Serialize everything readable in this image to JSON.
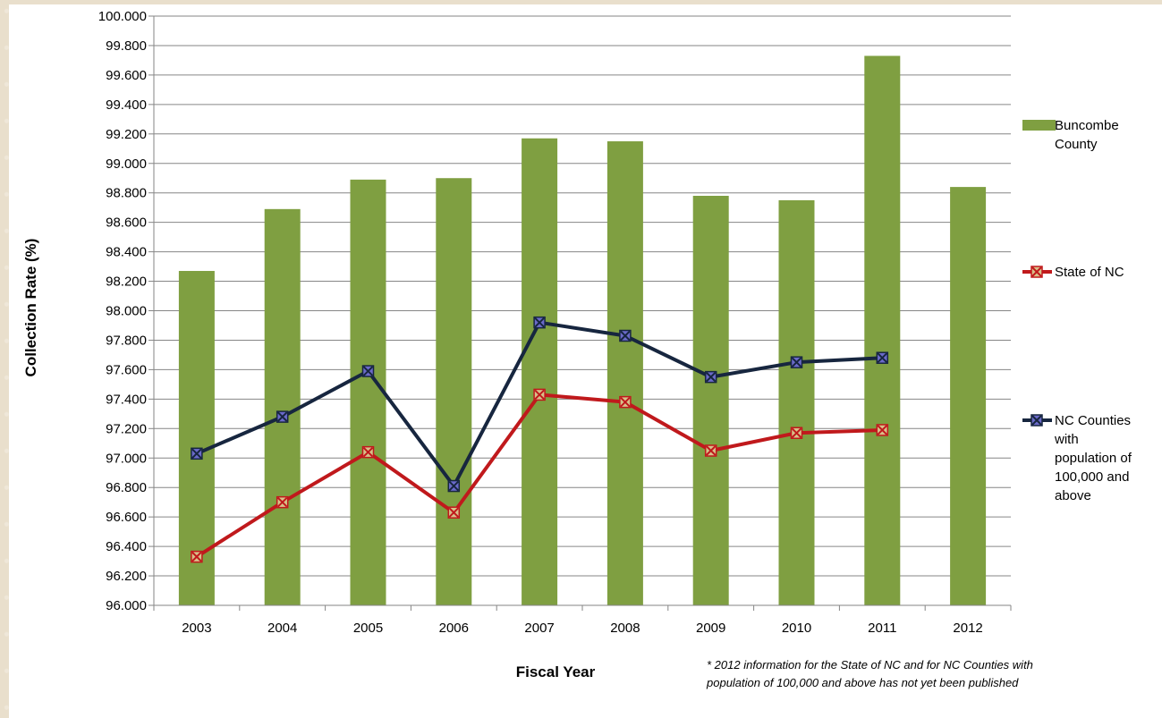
{
  "chart_data": {
    "type": "bar",
    "title": "",
    "xlabel": "Fiscal Year",
    "ylabel": "Collection Rate (%)",
    "ylim": [
      96.0,
      100.0
    ],
    "ytick_step": 0.2,
    "ytick_labels": [
      "96.000",
      "96.200",
      "96.400",
      "96.600",
      "96.800",
      "97.000",
      "97.200",
      "97.400",
      "97.600",
      "97.800",
      "98.000",
      "98.200",
      "98.400",
      "98.600",
      "98.800",
      "99.000",
      "99.200",
      "99.400",
      "99.600",
      "99.800",
      "100.000"
    ],
    "categories": [
      "2003",
      "2004",
      "2005",
      "2006",
      "2007",
      "2008",
      "2009",
      "2010",
      "2011",
      "2012"
    ],
    "grid": true,
    "legend_position": "right",
    "series": [
      {
        "name": "Buncombe County",
        "kind": "bar",
        "color": "#7f9f41",
        "values": [
          98.27,
          98.69,
          98.89,
          98.9,
          99.17,
          99.15,
          98.78,
          98.75,
          99.73,
          98.84
        ]
      },
      {
        "name": "State of NC",
        "kind": "line",
        "color": "#c0191c",
        "marker": "x-square",
        "marker_fill": "#d8c089",
        "values": [
          96.33,
          96.7,
          97.04,
          96.63,
          97.43,
          97.38,
          97.05,
          97.17,
          97.19,
          null
        ]
      },
      {
        "name": "NC Counties with population of 100,000 and above",
        "kind": "line",
        "color": "#17263f",
        "marker": "x-square",
        "marker_fill": "#6b6ac9",
        "values": [
          97.03,
          97.28,
          97.59,
          96.81,
          97.92,
          97.83,
          97.55,
          97.65,
          97.68,
          null
        ]
      }
    ],
    "legend": [
      {
        "lines": [
          "Buncombe",
          "County"
        ]
      },
      {
        "lines": [
          "State of NC"
        ]
      },
      {
        "lines": [
          "NC Counties",
          "with",
          "population of",
          "100,000 and",
          "above"
        ]
      }
    ],
    "annotation": [
      "* 2012 information for the State of NC and for NC Counties with",
      "population of 100,000 and above has not yet been published"
    ]
  }
}
